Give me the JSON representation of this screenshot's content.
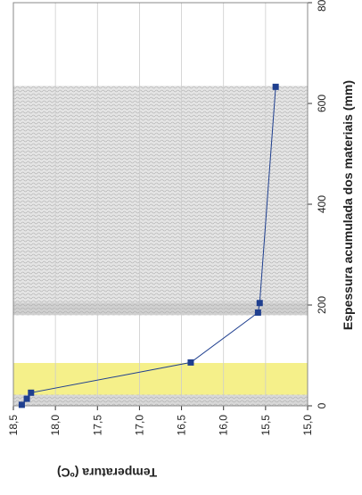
{
  "chart_data": {
    "type": "line",
    "x_label": "Espessura acumulada  dos materiais (mm)",
    "y_label": "Temperatura (ºC)",
    "x": [
      2,
      14,
      26,
      86,
      185,
      204,
      633
    ],
    "series": [
      {
        "color": "#1f3f8f",
        "values": [
          18.4,
          18.34,
          18.29,
          16.39,
          15.59,
          15.57,
          15.38
        ]
      }
    ],
    "xlim": [
      0,
      800
    ],
    "xticks": [
      0,
      200,
      400,
      600,
      800
    ],
    "ylim": [
      15.0,
      18.5
    ],
    "yticks": [
      {
        "value": 18.5,
        "label": "18,5"
      },
      {
        "value": 18.0,
        "label": "18,0"
      },
      {
        "value": 17.5,
        "label": "17,5"
      },
      {
        "value": 17.0,
        "label": "17,0"
      },
      {
        "value": 16.5,
        "label": "16,5"
      },
      {
        "value": 16.0,
        "label": "16,0"
      },
      {
        "value": 15.5,
        "label": "15,5"
      },
      {
        "value": 15.0,
        "label": "15,0"
      }
    ],
    "grid": true,
    "regions": [
      {
        "from": 0,
        "to": 22,
        "color": "#d8d8d8"
      },
      {
        "from": 22,
        "to": 85,
        "color": "#f5f08a"
      },
      {
        "from": 180,
        "to": 205,
        "color": "#d0d0d0"
      },
      {
        "from": 205,
        "to": 635,
        "color": "#e4e4e4"
      }
    ]
  }
}
